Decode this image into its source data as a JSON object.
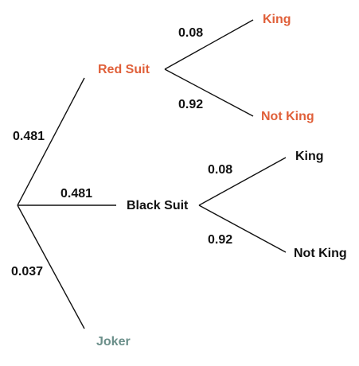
{
  "colors": {
    "red": "#e0603a",
    "black": "#111111",
    "joker": "#6b8f8a"
  },
  "tree": {
    "root": {
      "branches": [
        {
          "label": "Red Suit",
          "prob": "0.481",
          "color_key": "red",
          "children": [
            {
              "label": "King",
              "prob": "0.08",
              "color_key": "red"
            },
            {
              "label": "Not King",
              "prob": "0.92",
              "color_key": "red"
            }
          ]
        },
        {
          "label": "Black Suit",
          "prob": "0.481",
          "color_key": "black",
          "children": [
            {
              "label": "King",
              "prob": "0.08",
              "color_key": "black"
            },
            {
              "label": "Not King",
              "prob": "0.92",
              "color_key": "black"
            }
          ]
        },
        {
          "label": "Joker",
          "prob": "0.037",
          "color_key": "joker",
          "children": []
        }
      ]
    }
  }
}
